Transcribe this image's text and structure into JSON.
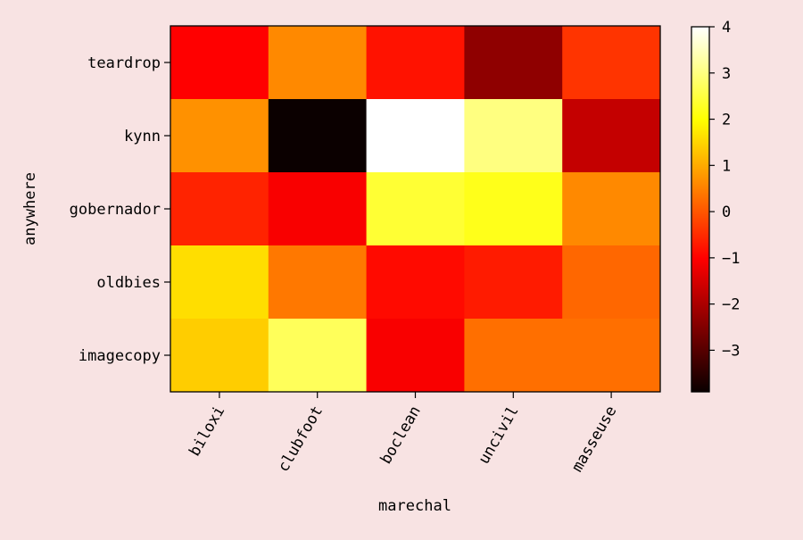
{
  "colors": {
    "background": "#f8e3e3",
    "axis": "#000000"
  },
  "chart_data": {
    "type": "heatmap",
    "colormap": "hot",
    "xlabel": "marechal",
    "ylabel": "anywhere",
    "x_categories": [
      "biloxi",
      "clubfoot",
      "boclean",
      "uncivil",
      "masseuse"
    ],
    "y_categories": [
      "teardrop",
      "kynn",
      "gobernador",
      "oldbies",
      "imagecopy"
    ],
    "values": [
      [
        -1.1,
        0.6,
        -0.8,
        -2.4,
        -0.4
      ],
      [
        0.7,
        -3.9,
        4.0,
        3.0,
        -1.8
      ],
      [
        -0.6,
        -1.2,
        2.4,
        2.2,
        0.6
      ],
      [
        1.6,
        0.4,
        -0.9,
        -0.7,
        0.2
      ],
      [
        1.4,
        2.7,
        -1.2,
        0.3,
        0.3
      ]
    ],
    "colorbar": {
      "min": -3.9,
      "max": 4.0,
      "ticks": [
        4,
        3,
        2,
        1,
        0,
        -1,
        -2,
        -3
      ],
      "tick_labels": [
        "4",
        "3",
        "2",
        "1",
        "0",
        "−1",
        "−2",
        "−3"
      ]
    },
    "grid": false,
    "legend": "none"
  }
}
